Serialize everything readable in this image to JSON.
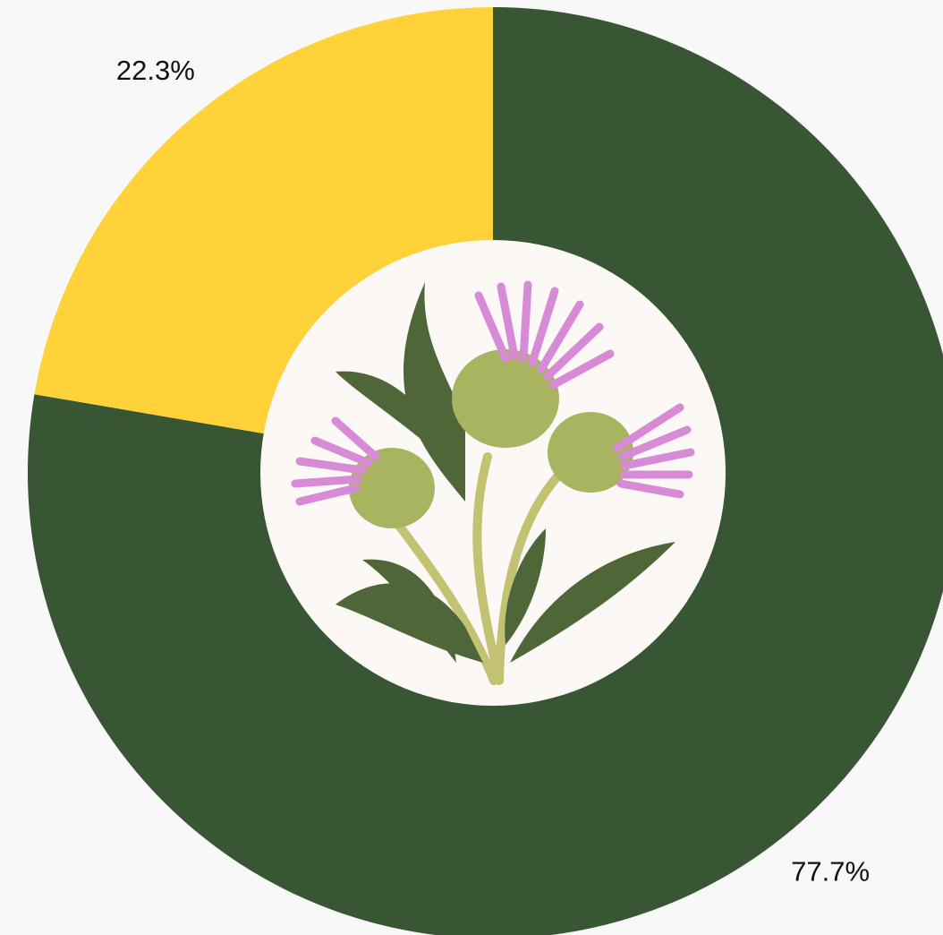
{
  "chart_data": {
    "type": "pie",
    "donut": true,
    "values": [
      77.7,
      22.3
    ],
    "value_labels": [
      "77.7%",
      "22.3%"
    ],
    "colors": [
      "#385534",
      "#FFD23A"
    ],
    "start_angle": 0,
    "clockwise": true
  }
}
